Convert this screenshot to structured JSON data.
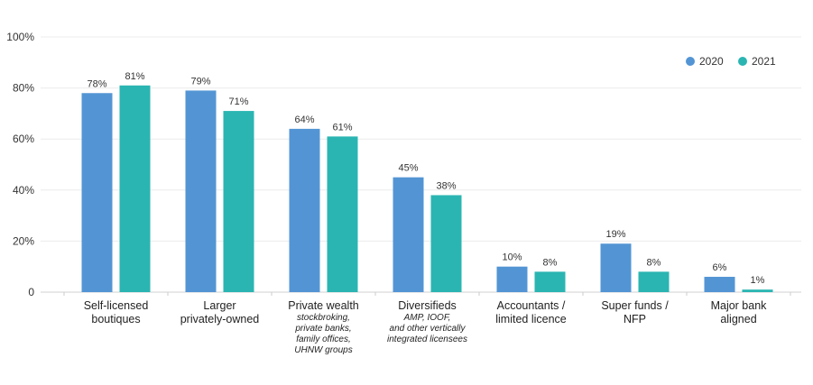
{
  "chart_data": {
    "type": "bar",
    "title": "",
    "xlabel": "",
    "ylabel": "",
    "ylim": [
      0,
      100
    ],
    "y_ticks": [
      "0",
      "20%",
      "40%",
      "60%",
      "80%",
      "100%"
    ],
    "y_tick_values": [
      0,
      20,
      40,
      60,
      80,
      100
    ],
    "grid": true,
    "legend_position": "top-right",
    "categories": [
      {
        "lines": [
          "Self-licensed",
          "boutiques"
        ],
        "sub": []
      },
      {
        "lines": [
          "Larger",
          "privately-owned"
        ],
        "sub": []
      },
      {
        "lines": [
          "Private wealth"
        ],
        "sub": [
          "stockbroking,",
          "private banks,",
          "family offices,",
          "UHNW groups"
        ]
      },
      {
        "lines": [
          "Diversifieds"
        ],
        "sub": [
          "AMP, IOOF,",
          "and other vertically",
          "integrated licensees"
        ]
      },
      {
        "lines": [
          "Accountants /",
          "limited licence"
        ],
        "sub": []
      },
      {
        "lines": [
          "Super funds /",
          "NFP"
        ],
        "sub": []
      },
      {
        "lines": [
          "Major bank",
          "aligned"
        ],
        "sub": []
      }
    ],
    "series": [
      {
        "name": "2020",
        "color": "#5395d4",
        "values": [
          78,
          79,
          64,
          45,
          10,
          19,
          6
        ],
        "labels": [
          "78%",
          "79%",
          "64%",
          "45%",
          "10%",
          "19%",
          "6%"
        ]
      },
      {
        "name": "2021",
        "color": "#2ab5b2",
        "values": [
          81,
          71,
          61,
          38,
          8,
          8,
          1
        ],
        "labels": [
          "81%",
          "71%",
          "61%",
          "38%",
          "8%",
          "8%",
          "1%"
        ]
      }
    ]
  }
}
